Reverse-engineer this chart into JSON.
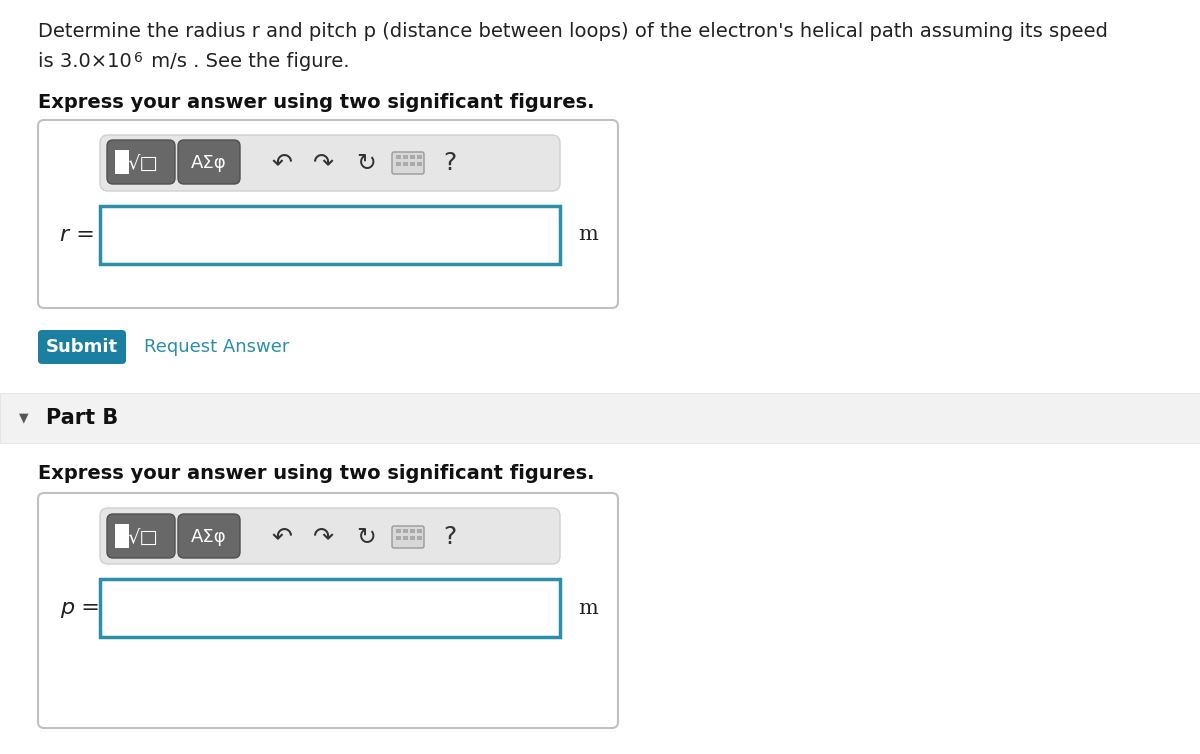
{
  "title_line1": "Determine the radius r and pitch p (distance between loops) of the electron's helical path assuming its speed",
  "title_line2_plain": "is 3.0×10",
  "title_line2_super": "6",
  "title_line2_rest": " m/s . See the figure.",
  "part_a_label": "Express your answer using two significant figures.",
  "part_b_section": "Part B",
  "part_b_label": "Express your answer using two significant figures.",
  "r_label": "r =",
  "p_label": "p =",
  "unit": "m",
  "submit_text": "Submit",
  "request_answer_text": "Request Answer",
  "bg_color": "#ffffff",
  "input_border_color": "#2b8fa8",
  "submit_bg": "#1a7fa0",
  "submit_text_color": "#ffffff",
  "request_answer_color": "#2b8fa8",
  "part_b_bg": "#f2f2f2",
  "toolbar_btn_bg": "#6e6e6e",
  "toolbar_area_bg": "#e5e5e5",
  "outer_box_border": "#cccccc",
  "font_size_title": 14,
  "font_size_bold_label": 14,
  "font_size_submit": 13,
  "font_size_part": 15,
  "font_size_unit": 14,
  "font_size_var": 15,
  "font_size_btn": 13,
  "font_size_icon": 17
}
